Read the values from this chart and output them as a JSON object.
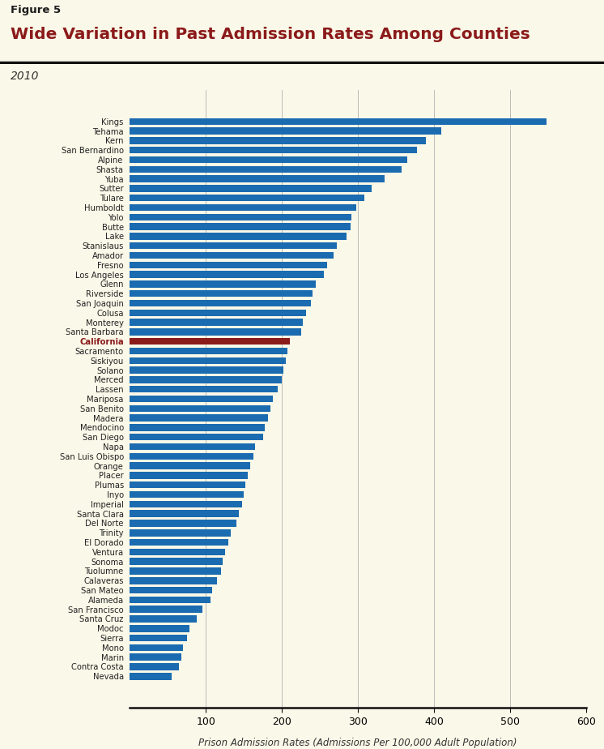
{
  "title_label": "Figure 5",
  "title": "Wide Variation in Past Admission Rates Among Counties",
  "subtitle": "2010",
  "xlabel": "Prison Admission Rates (Admissions Per 100,000 Adult Population)",
  "background_color": "#FAF8E8",
  "bar_color": "#1B6BB0",
  "california_color": "#8B1A1A",
  "counties": [
    "Kings",
    "Tehama",
    "Kern",
    "San Bernardino",
    "Alpine",
    "Shasta",
    "Yuba",
    "Sutter",
    "Tulare",
    "Humboldt",
    "Yolo",
    "Butte",
    "Lake",
    "Stanislaus",
    "Amador",
    "Fresno",
    "Los Angeles",
    "Glenn",
    "Riverside",
    "San Joaquin",
    "Colusa",
    "Monterey",
    "Santa Barbara",
    "California",
    "Sacramento",
    "Siskiyou",
    "Solano",
    "Merced",
    "Lassen",
    "Mariposa",
    "San Benito",
    "Madera",
    "Mendocino",
    "San Diego",
    "Napa",
    "San Luis Obispo",
    "Orange",
    "Placer",
    "Plumas",
    "Inyo",
    "Imperial",
    "Santa Clara",
    "Del Norte",
    "Trinity",
    "El Dorado",
    "Ventura",
    "Sonoma",
    "Tuolumne",
    "Calaveras",
    "San Mateo",
    "Alameda",
    "San Francisco",
    "Santa Cruz",
    "Modoc",
    "Sierra",
    "Mono",
    "Marin",
    "Contra Costa",
    "Nevada"
  ],
  "values": [
    548,
    410,
    390,
    378,
    365,
    358,
    335,
    318,
    308,
    298,
    292,
    290,
    285,
    272,
    268,
    260,
    255,
    245,
    240,
    238,
    232,
    228,
    225,
    210,
    207,
    205,
    202,
    200,
    195,
    188,
    185,
    182,
    178,
    175,
    165,
    163,
    158,
    155,
    152,
    150,
    148,
    143,
    140,
    133,
    130,
    125,
    122,
    120,
    115,
    108,
    106,
    95,
    88,
    78,
    75,
    70,
    68,
    65,
    55
  ],
  "xlim": [
    0,
    600
  ],
  "xticks": [
    100,
    200,
    300,
    400,
    500,
    600
  ],
  "grid_color": "#BBBBBB",
  "california_label": "California",
  "title_color": "#1a1a1a",
  "subtitle_color": "#333333",
  "header_line_color": "#111111"
}
